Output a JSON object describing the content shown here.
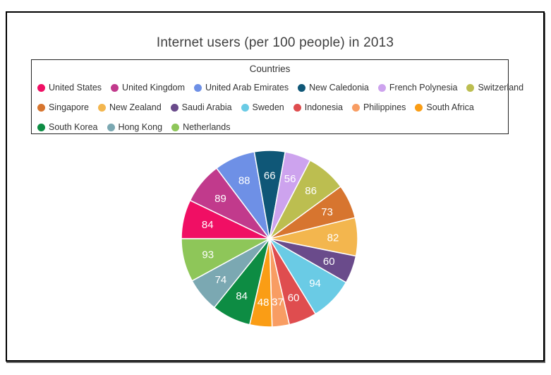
{
  "chart_data": {
    "type": "pie",
    "title": "Internet users (per 100 people) in 2013",
    "legend_title": "Countries",
    "slice_label_color": "#ffffff",
    "series": [
      {
        "name": "United States",
        "value": 84,
        "color": "#F00F64"
      },
      {
        "name": "United Kingdom",
        "value": 89,
        "color": "#C13A8C"
      },
      {
        "name": "United Arab Emirates",
        "value": 88,
        "color": "#6E90E6"
      },
      {
        "name": "New Caledonia",
        "value": 66,
        "color": "#0F5777"
      },
      {
        "name": "French Polynesia",
        "value": 56,
        "color": "#CDA3EE"
      },
      {
        "name": "Switzerland",
        "value": 86,
        "color": "#BCBE50"
      },
      {
        "name": "Singapore",
        "value": 73,
        "color": "#D7752F"
      },
      {
        "name": "New Zealand",
        "value": 82,
        "color": "#F3B64E"
      },
      {
        "name": "Saudi Arabia",
        "value": 60,
        "color": "#6A4B8B"
      },
      {
        "name": "Sweden",
        "value": 94,
        "color": "#6ACBE5"
      },
      {
        "name": "Indonesia",
        "value": 60,
        "color": "#DF4D4F"
      },
      {
        "name": "Philippines",
        "value": 37,
        "color": "#F89D63"
      },
      {
        "name": "South Africa",
        "value": 48,
        "color": "#FA9D15"
      },
      {
        "name": "South Korea",
        "value": 84,
        "color": "#0D8C43"
      },
      {
        "name": "Hong Kong",
        "value": 74,
        "color": "#7BA8B2"
      },
      {
        "name": "Netherlands",
        "value": 93,
        "color": "#8EC659"
      }
    ]
  }
}
